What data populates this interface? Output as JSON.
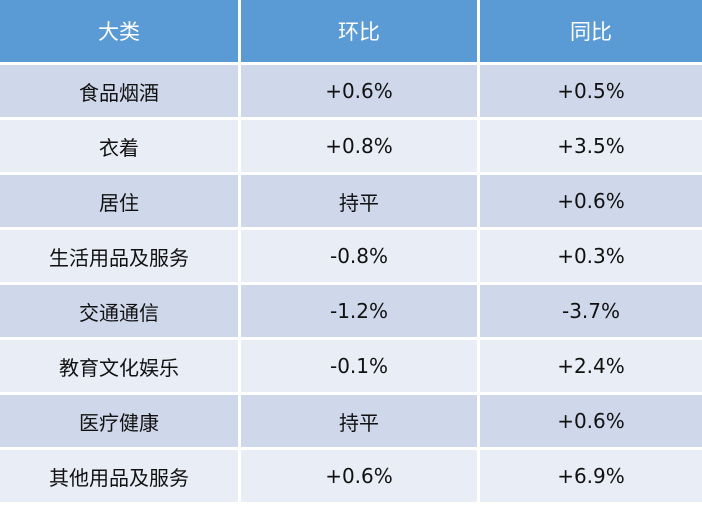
{
  "table": {
    "header": [
      "大类",
      "环比",
      "同比"
    ],
    "rows": [
      [
        "食品烟酒",
        "+0.6%",
        "+0.5%"
      ],
      [
        "衣着",
        "+0.8%",
        "+3.5%"
      ],
      [
        "居住",
        "持平",
        "+0.6%"
      ],
      [
        "生活用品及服务",
        "-0.8%",
        "+0.3%"
      ],
      [
        "交通通信",
        "-1.2%",
        "-3.7%"
      ],
      [
        "教育文化娱乐",
        "-0.1%",
        "+2.4%"
      ],
      [
        "医疗健康",
        "持平",
        "+0.6%"
      ],
      [
        "其他用品及服务",
        "+0.6%",
        "+6.9%"
      ]
    ]
  }
}
